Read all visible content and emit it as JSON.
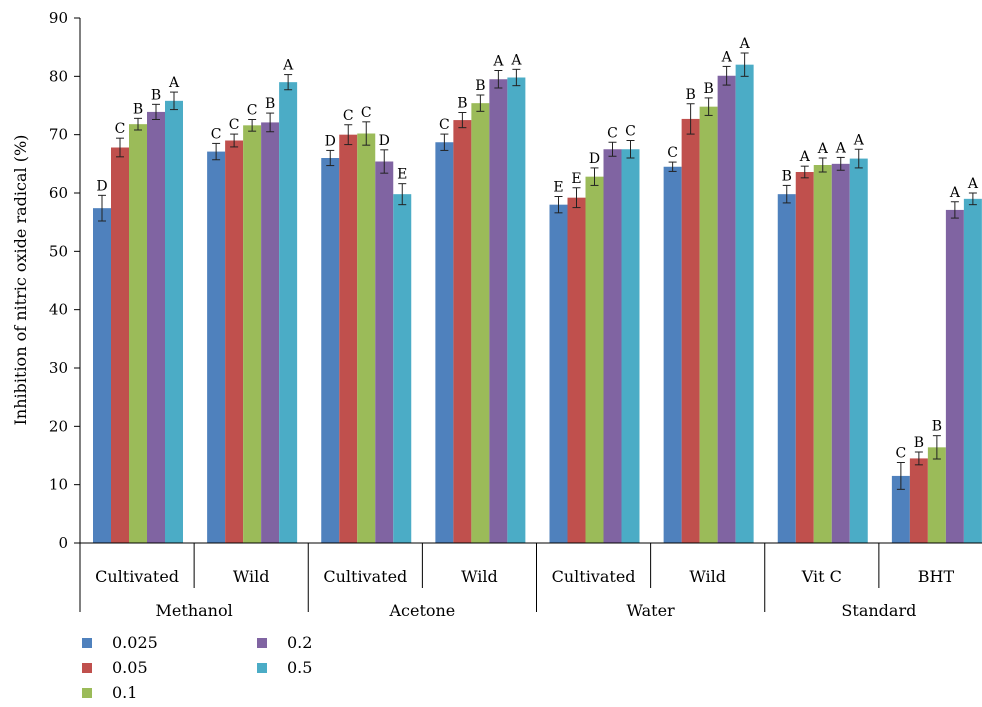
{
  "chart_data": {
    "type": "bar",
    "ylabel": "Inhibition of nitric oxide radical (%)",
    "ylim": [
      0,
      90
    ],
    "yticks": [
      0,
      10,
      20,
      30,
      40,
      50,
      60,
      70,
      80,
      90
    ],
    "grid": false,
    "legend_position": "bottom-left",
    "groups": [
      {
        "label": "Methanol",
        "categories": [
          "Cultivated",
          "Wild"
        ]
      },
      {
        "label": "Acetone",
        "categories": [
          "Cultivated",
          "Wild"
        ]
      },
      {
        "label": "Water",
        "categories": [
          "Cultivated",
          "Wild"
        ]
      },
      {
        "label": "Standard",
        "categories": [
          "Vit C",
          "BHT"
        ]
      }
    ],
    "categories": [
      "Cultivated",
      "Wild",
      "Cultivated",
      "Wild",
      "Cultivated",
      "Wild",
      "Vit C",
      "BHT"
    ],
    "series": [
      {
        "name": "0.025",
        "color": "#4f81bd",
        "values": [
          57.4,
          67.1,
          66.0,
          68.7,
          58.0,
          64.5,
          59.8,
          11.5
        ],
        "errors": [
          2.2,
          1.4,
          1.3,
          1.4,
          1.4,
          0.8,
          1.5,
          2.3
        ],
        "labels": [
          "D",
          "C",
          "D",
          "C",
          "E",
          "C",
          "B",
          "C"
        ]
      },
      {
        "name": "0.05",
        "color": "#c0504d",
        "values": [
          67.8,
          69.0,
          70.0,
          72.5,
          59.2,
          72.7,
          63.6,
          14.5
        ],
        "errors": [
          1.6,
          1.1,
          1.7,
          1.3,
          1.7,
          2.6,
          1.0,
          1.1
        ],
        "labels": [
          "C",
          "C",
          "C",
          "B",
          "E",
          "B",
          "A",
          "B"
        ]
      },
      {
        "name": "0.1",
        "color": "#9bbb59",
        "values": [
          71.8,
          71.6,
          70.2,
          75.4,
          62.8,
          74.8,
          64.8,
          16.4
        ],
        "errors": [
          1.0,
          1.0,
          2.0,
          1.4,
          1.5,
          1.5,
          1.2,
          2.0
        ],
        "labels": [
          "B",
          "C",
          "C",
          "B",
          "D",
          "B",
          "A",
          "B"
        ]
      },
      {
        "name": "0.2",
        "color": "#8064a2",
        "values": [
          73.9,
          72.1,
          65.4,
          79.5,
          67.5,
          80.1,
          65.0,
          57.1
        ],
        "errors": [
          1.3,
          1.6,
          2.0,
          1.5,
          1.2,
          1.6,
          1.1,
          1.4
        ],
        "labels": [
          "B",
          "B",
          "D",
          "A",
          "C",
          "A",
          "A",
          "A"
        ]
      },
      {
        "name": "0.5",
        "color": "#4bacc6",
        "values": [
          75.8,
          79.0,
          59.8,
          79.8,
          67.5,
          82.0,
          65.9,
          59.0
        ],
        "errors": [
          1.5,
          1.3,
          1.8,
          1.4,
          1.5,
          2.0,
          1.6,
          1.0
        ],
        "labels": [
          "A",
          "A",
          "E",
          "A",
          "C",
          "A",
          "A",
          "A"
        ]
      }
    ]
  }
}
